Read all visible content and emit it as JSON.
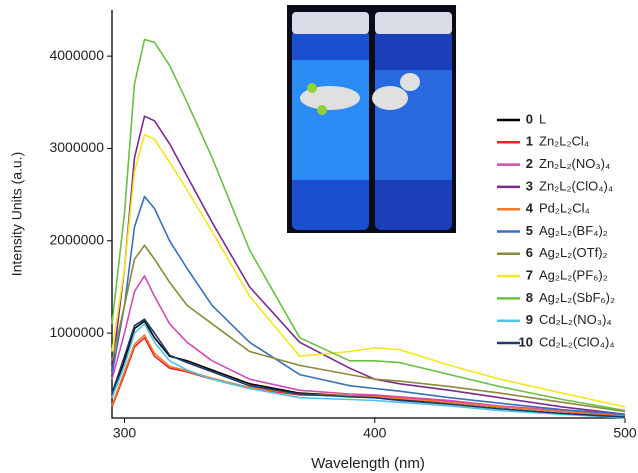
{
  "chart_data": {
    "type": "line",
    "xlabel": "Wavelength (nm)",
    "ylabel": "Intensity Units (a.u.)",
    "x": [
      295,
      300,
      304,
      308,
      312,
      318,
      325,
      335,
      350,
      370,
      390,
      400,
      410,
      430,
      450,
      475,
      500
    ],
    "xlim": [
      295,
      500
    ],
    "xticks": [
      300,
      400,
      500
    ],
    "ylim": [
      80000,
      4500000
    ],
    "yticks": [
      1000000,
      2000000,
      3000000,
      4000000
    ],
    "series": [
      {
        "number": "0",
        "name": "L",
        "color": "#000000",
        "values": [
          300000,
          700000,
          1050000,
          1130000,
          950000,
          750000,
          700000,
          600000,
          450000,
          350000,
          320000,
          300000,
          280000,
          250000,
          200000,
          150000,
          100000
        ]
      },
      {
        "number": "1",
        "name": "Zn₂L₂Cl₄",
        "color": "#e8262a",
        "values": [
          200000,
          550000,
          850000,
          950000,
          750000,
          620000,
          580000,
          500000,
          400000,
          330000,
          320000,
          320000,
          300000,
          260000,
          200000,
          150000,
          100000
        ]
      },
      {
        "number": "2",
        "name": "Zn₂L₂(NO₃)₄",
        "color": "#d44bb0",
        "values": [
          500000,
          1000000,
          1450000,
          1620000,
          1400000,
          1100000,
          900000,
          700000,
          500000,
          380000,
          340000,
          330000,
          310000,
          270000,
          210000,
          160000,
          110000
        ]
      },
      {
        "number": "3",
        "name": "Zn₂L₂(ClO₄)₄",
        "color": "#7b2a8e",
        "values": [
          600000,
          1700000,
          2900000,
          3350000,
          3300000,
          3050000,
          2700000,
          2200000,
          1500000,
          900000,
          620000,
          500000,
          450000,
          380000,
          300000,
          200000,
          120000
        ]
      },
      {
        "number": "4",
        "name": "Pd₂L₂Cl₄",
        "color": "#f07b2a",
        "values": [
          220000,
          580000,
          880000,
          980000,
          780000,
          640000,
          590000,
          510000,
          410000,
          340000,
          320000,
          310000,
          290000,
          250000,
          200000,
          150000,
          100000
        ]
      },
      {
        "number": "5",
        "name": "Ag₂L₂(BF₄)₂",
        "color": "#3b6fb6",
        "values": [
          550000,
          1300000,
          2150000,
          2480000,
          2350000,
          2000000,
          1700000,
          1300000,
          900000,
          550000,
          430000,
          400000,
          370000,
          300000,
          240000,
          170000,
          120000
        ]
      },
      {
        "number": "6",
        "name": "Ag₂L₂(OTf)₂",
        "color": "#8a8a3a",
        "values": [
          700000,
          1300000,
          1800000,
          1950000,
          1800000,
          1550000,
          1300000,
          1100000,
          800000,
          650000,
          550000,
          500000,
          480000,
          420000,
          350000,
          250000,
          150000
        ]
      },
      {
        "number": "7",
        "name": "Ag₂L₂(PF₆)₂",
        "color": "#f5e61e",
        "values": [
          800000,
          1700000,
          2750000,
          3150000,
          3100000,
          2850000,
          2550000,
          2100000,
          1400000,
          750000,
          800000,
          840000,
          820000,
          650000,
          500000,
          350000,
          200000
        ]
      },
      {
        "number": "8",
        "name": "Ag₂L₂(SbF₆)₂",
        "color": "#6cbf45",
        "values": [
          1100000,
          2300000,
          3700000,
          4180000,
          4150000,
          3900000,
          3500000,
          2900000,
          1900000,
          950000,
          700000,
          700000,
          680000,
          550000,
          420000,
          280000,
          160000
        ]
      },
      {
        "number": "9",
        "name": "Cd₂L₂(NO₃)₄",
        "color": "#4fc3e8",
        "values": [
          300000,
          650000,
          1000000,
          1100000,
          900000,
          700000,
          600000,
          500000,
          400000,
          300000,
          280000,
          270000,
          250000,
          210000,
          160000,
          120000,
          80000
        ]
      },
      {
        "number": "10",
        "name": "Cd₂L₂(ClO₄)₄",
        "color": "#1c3a6b",
        "values": [
          350000,
          750000,
          1080000,
          1150000,
          1000000,
          760000,
          680000,
          580000,
          430000,
          340000,
          310000,
          300000,
          270000,
          230000,
          180000,
          130000,
          90000
        ]
      }
    ]
  }
}
